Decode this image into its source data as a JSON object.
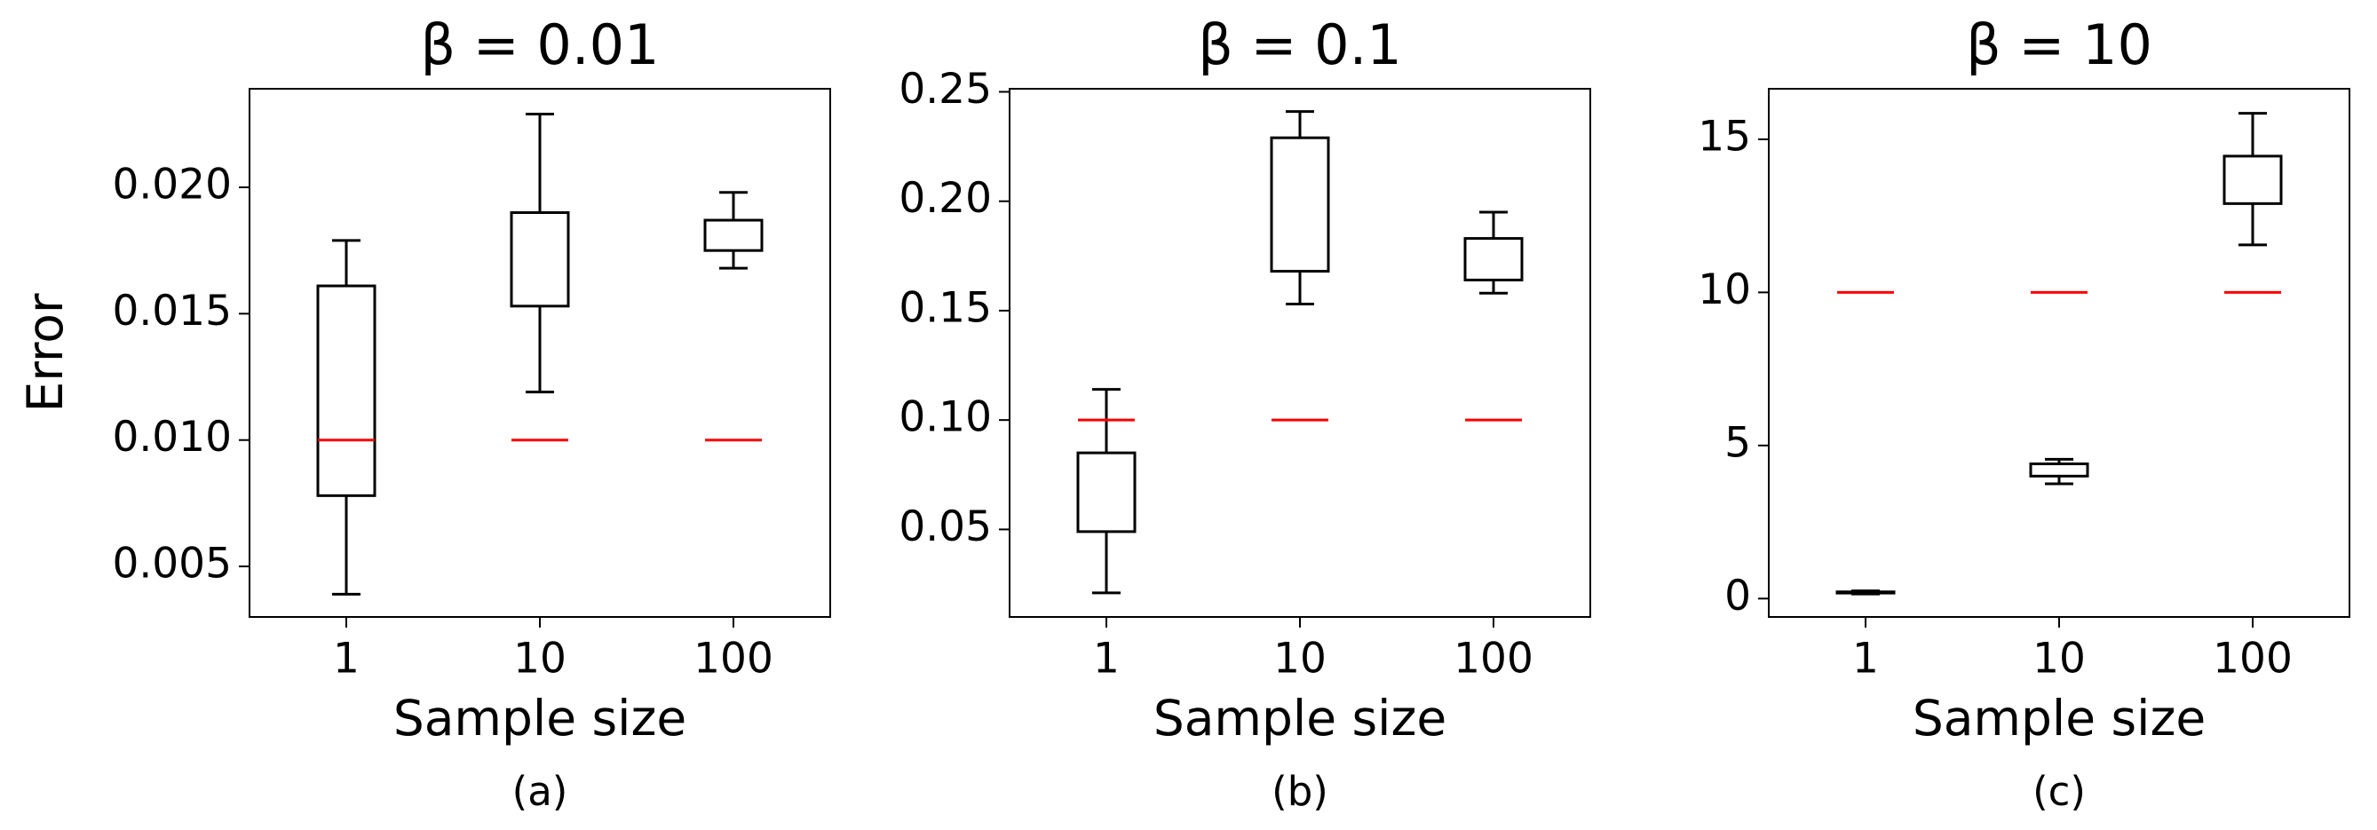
{
  "chart_data": [
    {
      "type": "box",
      "title": "β = 0.01",
      "x_label": "Sample size",
      "y_label": "Error",
      "caption": "(a)",
      "categories": [
        "1",
        "10",
        "100"
      ],
      "whisker_low": [
        0.0039,
        0.0119,
        0.0168
      ],
      "q1": [
        0.0078,
        0.0153,
        0.0175
      ],
      "q3": [
        0.0161,
        0.019,
        0.0187
      ],
      "whisker_high": [
        0.0179,
        0.0229,
        0.0198
      ],
      "reference": [
        0.01,
        0.01,
        0.01
      ],
      "box_color": "#000000",
      "reference_color": "#ff0000",
      "ylim": [
        0.003,
        0.0239
      ],
      "yticks": [
        0.005,
        {
          "value": 0.01,
          "label": "0.010"
        },
        0.015,
        {
          "value": 0.02,
          "label": "0.020"
        }
      ]
    },
    {
      "type": "box",
      "title": "β = 0.1",
      "x_label": "Sample size",
      "caption": "(b)",
      "categories": [
        "1",
        "10",
        "100"
      ],
      "whisker_low": [
        0.021,
        0.153,
        0.158
      ],
      "q1": [
        0.049,
        0.168,
        0.164
      ],
      "q3": [
        0.085,
        0.229,
        0.183
      ],
      "whisker_high": [
        0.114,
        0.241,
        0.195
      ],
      "reference": [
        0.1,
        0.1,
        0.1
      ],
      "box_color": "#000000",
      "reference_color": "#ff0000",
      "ylim": [
        0.01,
        0.2514
      ],
      "yticks": [
        0.05,
        {
          "value": 0.1,
          "label": "0.10"
        },
        0.15,
        {
          "value": 0.2,
          "label": "0.20"
        },
        0.25
      ]
    },
    {
      "type": "box",
      "title": "β = 10",
      "x_label": "Sample size",
      "caption": "(c)",
      "categories": [
        "1",
        "10",
        "100"
      ],
      "whisker_low": [
        0.15,
        3.75,
        11.55
      ],
      "q1": [
        0.18,
        4.0,
        12.9
      ],
      "q3": [
        0.22,
        4.4,
        14.45
      ],
      "whisker_high": [
        0.25,
        4.55,
        15.85
      ],
      "reference": [
        10,
        10,
        10
      ],
      "box_color": "#000000",
      "reference_color": "#ff0000",
      "ylim": [
        -0.6,
        16.65
      ],
      "yticks": [
        0,
        5,
        10,
        15
      ]
    }
  ]
}
